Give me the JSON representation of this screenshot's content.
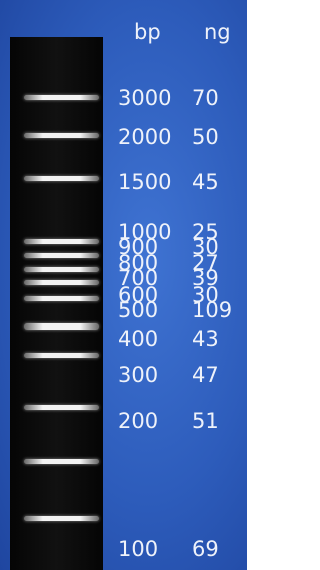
{
  "header": {
    "bp": "bp",
    "ng": "ng"
  },
  "rows": [
    {
      "bp": "3000",
      "ng": "70"
    },
    {
      "bp": "2000",
      "ng": "50"
    },
    {
      "bp": "1500",
      "ng": "45"
    },
    {
      "bp": "1000",
      "ng": "25"
    },
    {
      "bp": "900",
      "ng": "30"
    },
    {
      "bp": "800",
      "ng": "27"
    },
    {
      "bp": "700",
      "ng": "39"
    },
    {
      "bp": "600",
      "ng": "30"
    },
    {
      "bp": "500",
      "ng": "109"
    },
    {
      "bp": "400",
      "ng": "43"
    },
    {
      "bp": "300",
      "ng": "47"
    },
    {
      "bp": "200",
      "ng": "51"
    },
    {
      "bp": "100",
      "ng": "69"
    }
  ]
}
